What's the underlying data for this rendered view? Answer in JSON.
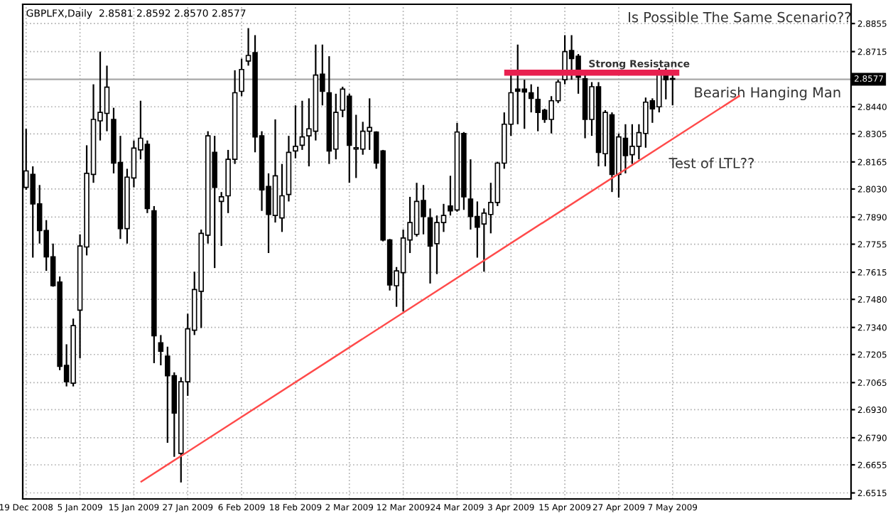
{
  "chart_data": {
    "type": "candlestick",
    "title": "GBPLFX,Daily  2.8581 2.8592 2.8570 2.8577",
    "categories": [
      "19 Dec 2008",
      null,
      null,
      null,
      null,
      null,
      null,
      null,
      "5 Jan 2009",
      null,
      null,
      null,
      null,
      null,
      null,
      null,
      "15 Jan 2009",
      null,
      null,
      null,
      null,
      null,
      null,
      null,
      "27 Jan 2009",
      null,
      null,
      null,
      null,
      null,
      null,
      null,
      "6 Feb 2009",
      null,
      null,
      null,
      null,
      null,
      null,
      null,
      "18 Feb 2009",
      null,
      null,
      null,
      null,
      null,
      null,
      null,
      "2 Mar 2009",
      null,
      null,
      null,
      null,
      null,
      null,
      null,
      "12 Mar 2009",
      null,
      null,
      null,
      null,
      null,
      null,
      null,
      "24 Mar 2009",
      null,
      null,
      null,
      null,
      null,
      null,
      null,
      "3 Apr 2009",
      null,
      null,
      null,
      null,
      null,
      null,
      null,
      "15 Apr 2009",
      null,
      null,
      null,
      null,
      null,
      null,
      null,
      "27 Apr 2009",
      null,
      null,
      null,
      null,
      null,
      null,
      null,
      "7 May 2009",
      null,
      null,
      null,
      null,
      null,
      null,
      null,
      null,
      null,
      null,
      null,
      null,
      null,
      null,
      null,
      null,
      null,
      null,
      null,
      null,
      null,
      null,
      null,
      null,
      null,
      null
    ],
    "ohlc": [
      [
        2.8038,
        2.833,
        2.8026,
        2.812
      ],
      [
        2.8103,
        2.8143,
        2.7688,
        2.7956
      ],
      [
        2.7956,
        2.805,
        2.7758,
        2.7823
      ],
      [
        2.7823,
        2.7875,
        2.7622,
        2.7692
      ],
      [
        2.7692,
        2.7758,
        2.7543,
        2.7548
      ],
      [
        2.7566,
        2.7594,
        2.7127,
        2.7146
      ],
      [
        2.7151,
        2.7256,
        2.7046,
        2.7069
      ],
      [
        2.7062,
        2.7384,
        2.7046,
        2.7349
      ],
      [
        2.7426,
        2.7804,
        2.7186,
        2.7746
      ],
      [
        2.7741,
        2.8248,
        2.7699,
        2.8108
      ],
      [
        2.8103,
        2.8552,
        2.8061,
        2.8377
      ],
      [
        2.837,
        2.8715,
        2.8272,
        2.8412
      ],
      [
        2.8407,
        2.8645,
        2.8318,
        2.8538
      ],
      [
        2.8377,
        2.8435,
        2.8108,
        2.8159
      ],
      [
        2.8162,
        2.8295,
        2.7781,
        2.7833
      ],
      [
        2.7833,
        2.8131,
        2.7758,
        2.8089
      ],
      [
        2.8085,
        2.8272,
        2.8038,
        2.8234
      ],
      [
        2.8225,
        2.847,
        2.8178,
        2.8283
      ],
      [
        2.8253,
        2.8272,
        2.791,
        2.7933
      ],
      [
        2.7921,
        2.7945,
        2.7162,
        2.7298
      ],
      [
        2.7263,
        2.7302,
        2.7151,
        2.7221
      ],
      [
        2.7197,
        2.7244,
        2.6765,
        2.7099
      ],
      [
        2.7099,
        2.7116,
        2.6695,
        2.6913
      ],
      [
        2.6712,
        2.7092,
        2.6567,
        2.7069
      ],
      [
        2.7069,
        2.7408,
        2.6999,
        2.7333
      ],
      [
        2.7326,
        2.7618,
        2.7302,
        2.7529
      ],
      [
        2.752,
        2.7828,
        2.7337,
        2.7809
      ],
      [
        2.78,
        2.8318,
        2.7758,
        2.8295
      ],
      [
        2.8213,
        2.8295,
        2.7636,
        2.8038
      ],
      [
        2.7968,
        2.8015,
        2.7746,
        2.7991
      ],
      [
        2.7996,
        2.8225,
        2.791,
        2.8178
      ],
      [
        2.8178,
        2.8622,
        2.8155,
        2.851
      ],
      [
        2.8517,
        2.868,
        2.8493,
        2.8626
      ],
      [
        2.8668,
        2.8832,
        2.8645,
        2.8696
      ],
      [
        2.871,
        2.8797,
        2.8213,
        2.829
      ],
      [
        2.8295,
        2.8318,
        2.7921,
        2.8026
      ],
      [
        2.8043,
        2.8108,
        2.7711,
        2.7903
      ],
      [
        2.7898,
        2.8377,
        2.7863,
        2.8096
      ],
      [
        2.7886,
        2.8155,
        2.7816,
        2.7996
      ],
      [
        2.8003,
        2.8295,
        2.7968,
        2.8213
      ],
      [
        2.822,
        2.8447,
        2.8183,
        2.8243
      ],
      [
        2.8248,
        2.847,
        2.8225,
        2.829
      ],
      [
        2.8295,
        2.8482,
        2.8143,
        2.833
      ],
      [
        2.8318,
        2.875,
        2.8272,
        2.8598
      ],
      [
        2.8603,
        2.875,
        2.8447,
        2.8517
      ],
      [
        2.851,
        2.8692,
        2.8155,
        2.822
      ],
      [
        2.8229,
        2.8505,
        2.8178,
        2.8412
      ],
      [
        2.8423,
        2.854,
        2.8388,
        2.8528
      ],
      [
        2.8493,
        2.8505,
        2.8061,
        2.8248
      ],
      [
        2.8229,
        2.84,
        2.8085,
        2.8236
      ],
      [
        2.8229,
        2.8365,
        2.8201,
        2.8318
      ],
      [
        2.8318,
        2.8482,
        2.8225,
        2.8337
      ],
      [
        2.8314,
        2.8318,
        2.8131,
        2.8159
      ],
      [
        2.822,
        2.8225,
        2.7769,
        2.7776
      ],
      [
        2.7776,
        2.7781,
        2.7524,
        2.7552
      ],
      [
        2.7548,
        2.7641,
        2.7443,
        2.7622
      ],
      [
        2.7613,
        2.7828,
        2.7419,
        2.7786
      ],
      [
        2.7776,
        2.7991,
        2.7711,
        2.7863
      ],
      [
        2.7804,
        2.8061,
        2.7793,
        2.7968
      ],
      [
        2.7973,
        2.805,
        2.7804,
        2.7893
      ],
      [
        2.7886,
        2.7933,
        2.7559,
        2.7746
      ],
      [
        2.7758,
        2.7898,
        2.7606,
        2.7863
      ],
      [
        2.7863,
        2.7956,
        2.7816,
        2.7898
      ],
      [
        2.7945,
        2.8096,
        2.7898,
        2.7921
      ],
      [
        2.7926,
        2.836,
        2.7917,
        2.8314
      ],
      [
        2.8307,
        2.8314,
        2.7926,
        2.7991
      ],
      [
        2.798,
        2.8178,
        2.7828,
        2.7893
      ],
      [
        2.7893,
        2.7968,
        2.7688,
        2.784
      ],
      [
        2.7856,
        2.7933,
        2.7618,
        2.791
      ],
      [
        2.7903,
        2.8061,
        2.7809,
        2.7963
      ],
      [
        2.7963,
        2.8166,
        2.7945,
        2.8159
      ],
      [
        2.8159,
        2.8412,
        2.8131,
        2.8353
      ],
      [
        2.8353,
        2.8598,
        2.8295,
        2.851
      ],
      [
        2.8528,
        2.875,
        2.8353,
        2.8517
      ],
      [
        2.8528,
        2.8575,
        2.833,
        2.8514
      ],
      [
        2.851,
        2.8552,
        2.8412,
        2.8482
      ],
      [
        2.8477,
        2.854,
        2.8318,
        2.8412
      ],
      [
        2.8423,
        2.843,
        2.836,
        2.8377
      ],
      [
        2.8377,
        2.8493,
        2.8307,
        2.847
      ],
      [
        2.847,
        2.8575,
        2.8458,
        2.8563
      ],
      [
        2.8575,
        2.8797,
        2.8552,
        2.8715
      ],
      [
        2.872,
        2.8797,
        2.8575,
        2.868
      ],
      [
        2.8692,
        2.8703,
        2.8505,
        2.8587
      ],
      [
        2.858,
        2.8598,
        2.8283,
        2.8377
      ],
      [
        2.8377,
        2.8563,
        2.8295,
        2.854
      ],
      [
        2.854,
        2.8563,
        2.8143,
        2.8213
      ],
      [
        2.8206,
        2.8423,
        2.8143,
        2.8412
      ],
      [
        2.84,
        2.8412,
        2.8015,
        2.8103
      ],
      [
        2.8103,
        2.8307,
        2.7987,
        2.829
      ],
      [
        2.8283,
        2.8353,
        2.8108,
        2.8197
      ],
      [
        2.8201,
        2.8353,
        2.8155,
        2.8243
      ],
      [
        2.8243,
        2.8353,
        2.8178,
        2.8311
      ],
      [
        2.8307,
        2.8486,
        2.8236,
        2.8463
      ],
      [
        2.847,
        2.8482,
        2.836,
        2.843
      ],
      [
        2.844,
        2.8633,
        2.8412,
        2.8603
      ],
      [
        2.8603,
        2.8633,
        2.8477,
        2.8575
      ],
      [
        2.8581,
        2.8598,
        2.8447,
        2.8577
      ],
      null,
      null,
      null,
      null,
      null,
      null,
      null,
      null,
      null,
      null,
      null,
      null,
      null,
      null,
      null,
      null,
      null,
      null,
      null,
      null,
      null,
      null,
      null,
      null,
      null,
      null
    ],
    "series": [
      {
        "type": "line",
        "color": "#e8204f",
        "values": [
          null,
          null,
          null,
          null,
          null,
          null,
          null,
          null,
          null,
          null,
          null,
          null,
          null,
          null,
          null,
          null,
          null,
          null,
          null,
          null,
          null,
          null,
          null,
          null,
          null,
          null,
          null,
          null,
          null,
          null,
          null,
          null,
          null,
          null,
          null,
          null,
          null,
          null,
          null,
          null,
          null,
          null,
          null,
          null,
          null,
          null,
          null,
          null,
          null,
          null,
          null,
          null,
          null,
          null,
          null,
          null,
          null,
          null,
          null,
          null,
          null,
          null,
          null,
          null,
          null,
          null,
          null,
          null,
          null,
          null,
          null,
          2.861,
          null,
          null,
          null,
          null,
          null,
          null,
          null,
          null,
          null,
          null,
          null,
          null,
          null,
          null,
          null,
          null,
          null,
          null,
          null,
          null,
          null,
          null,
          null,
          null,
          null,
          2.861,
          null,
          null,
          null,
          null,
          null,
          null,
          null,
          null,
          null,
          null,
          null,
          null,
          null,
          null,
          null,
          null,
          null,
          null,
          null,
          null,
          null,
          null,
          null,
          null,
          null
        ]
      },
      {
        "type": "line",
        "color": "#ff4a4a",
        "values": [
          null,
          null,
          null,
          null,
          null,
          null,
          null,
          null,
          null,
          null,
          null,
          null,
          null,
          null,
          null,
          null,
          null,
          2.6569,
          null,
          null,
          null,
          null,
          null,
          null,
          null,
          null,
          null,
          null,
          null,
          null,
          null,
          null,
          null,
          null,
          null,
          null,
          null,
          null,
          null,
          null,
          null,
          null,
          null,
          null,
          null,
          null,
          null,
          null,
          null,
          null,
          null,
          null,
          null,
          null,
          null,
          null,
          null,
          null,
          null,
          null,
          null,
          null,
          null,
          null,
          null,
          null,
          null,
          null,
          null,
          null,
          null,
          null,
          null,
          null,
          null,
          null,
          null,
          null,
          null,
          null,
          null,
          null,
          null,
          null,
          null,
          null,
          null,
          null,
          null,
          null,
          null,
          null,
          null,
          null,
          null,
          null,
          null,
          null,
          null,
          null,
          null,
          null,
          null,
          null,
          null,
          null,
          2.8496,
          null,
          null,
          null,
          null,
          null,
          null,
          null,
          null,
          null,
          null,
          null,
          null,
          null,
          null,
          null,
          null
        ]
      }
    ],
    "ylim": [
      2.6485,
      2.8951
    ],
    "yticks": [
      2.8855,
      2.8715,
      {
        "value": 2.844,
        "label": "2.8440"
      },
      2.8305,
      2.8165,
      {
        "value": 2.803,
        "label": "2.8030"
      },
      {
        "value": 2.789,
        "label": "2.7890"
      },
      2.7755,
      2.7615,
      {
        "value": 2.748,
        "label": "2.7480"
      },
      {
        "value": 2.734,
        "label": "2.7340"
      },
      2.7205,
      2.7065,
      {
        "value": 2.693,
        "label": "2.6930"
      },
      {
        "value": 2.679,
        "label": "2.6790"
      },
      2.6655,
      2.6515
    ],
    "ref_lines": [
      {
        "axis": "y",
        "value": 2.8577,
        "label": "2.8577",
        "color": "#a8a8a8"
      }
    ],
    "annotations": [
      "Is Possible The Same Scenario??",
      "Strong Resistance",
      "Bearish Hanging Man",
      "Test of LTL??"
    ],
    "grid": true
  }
}
